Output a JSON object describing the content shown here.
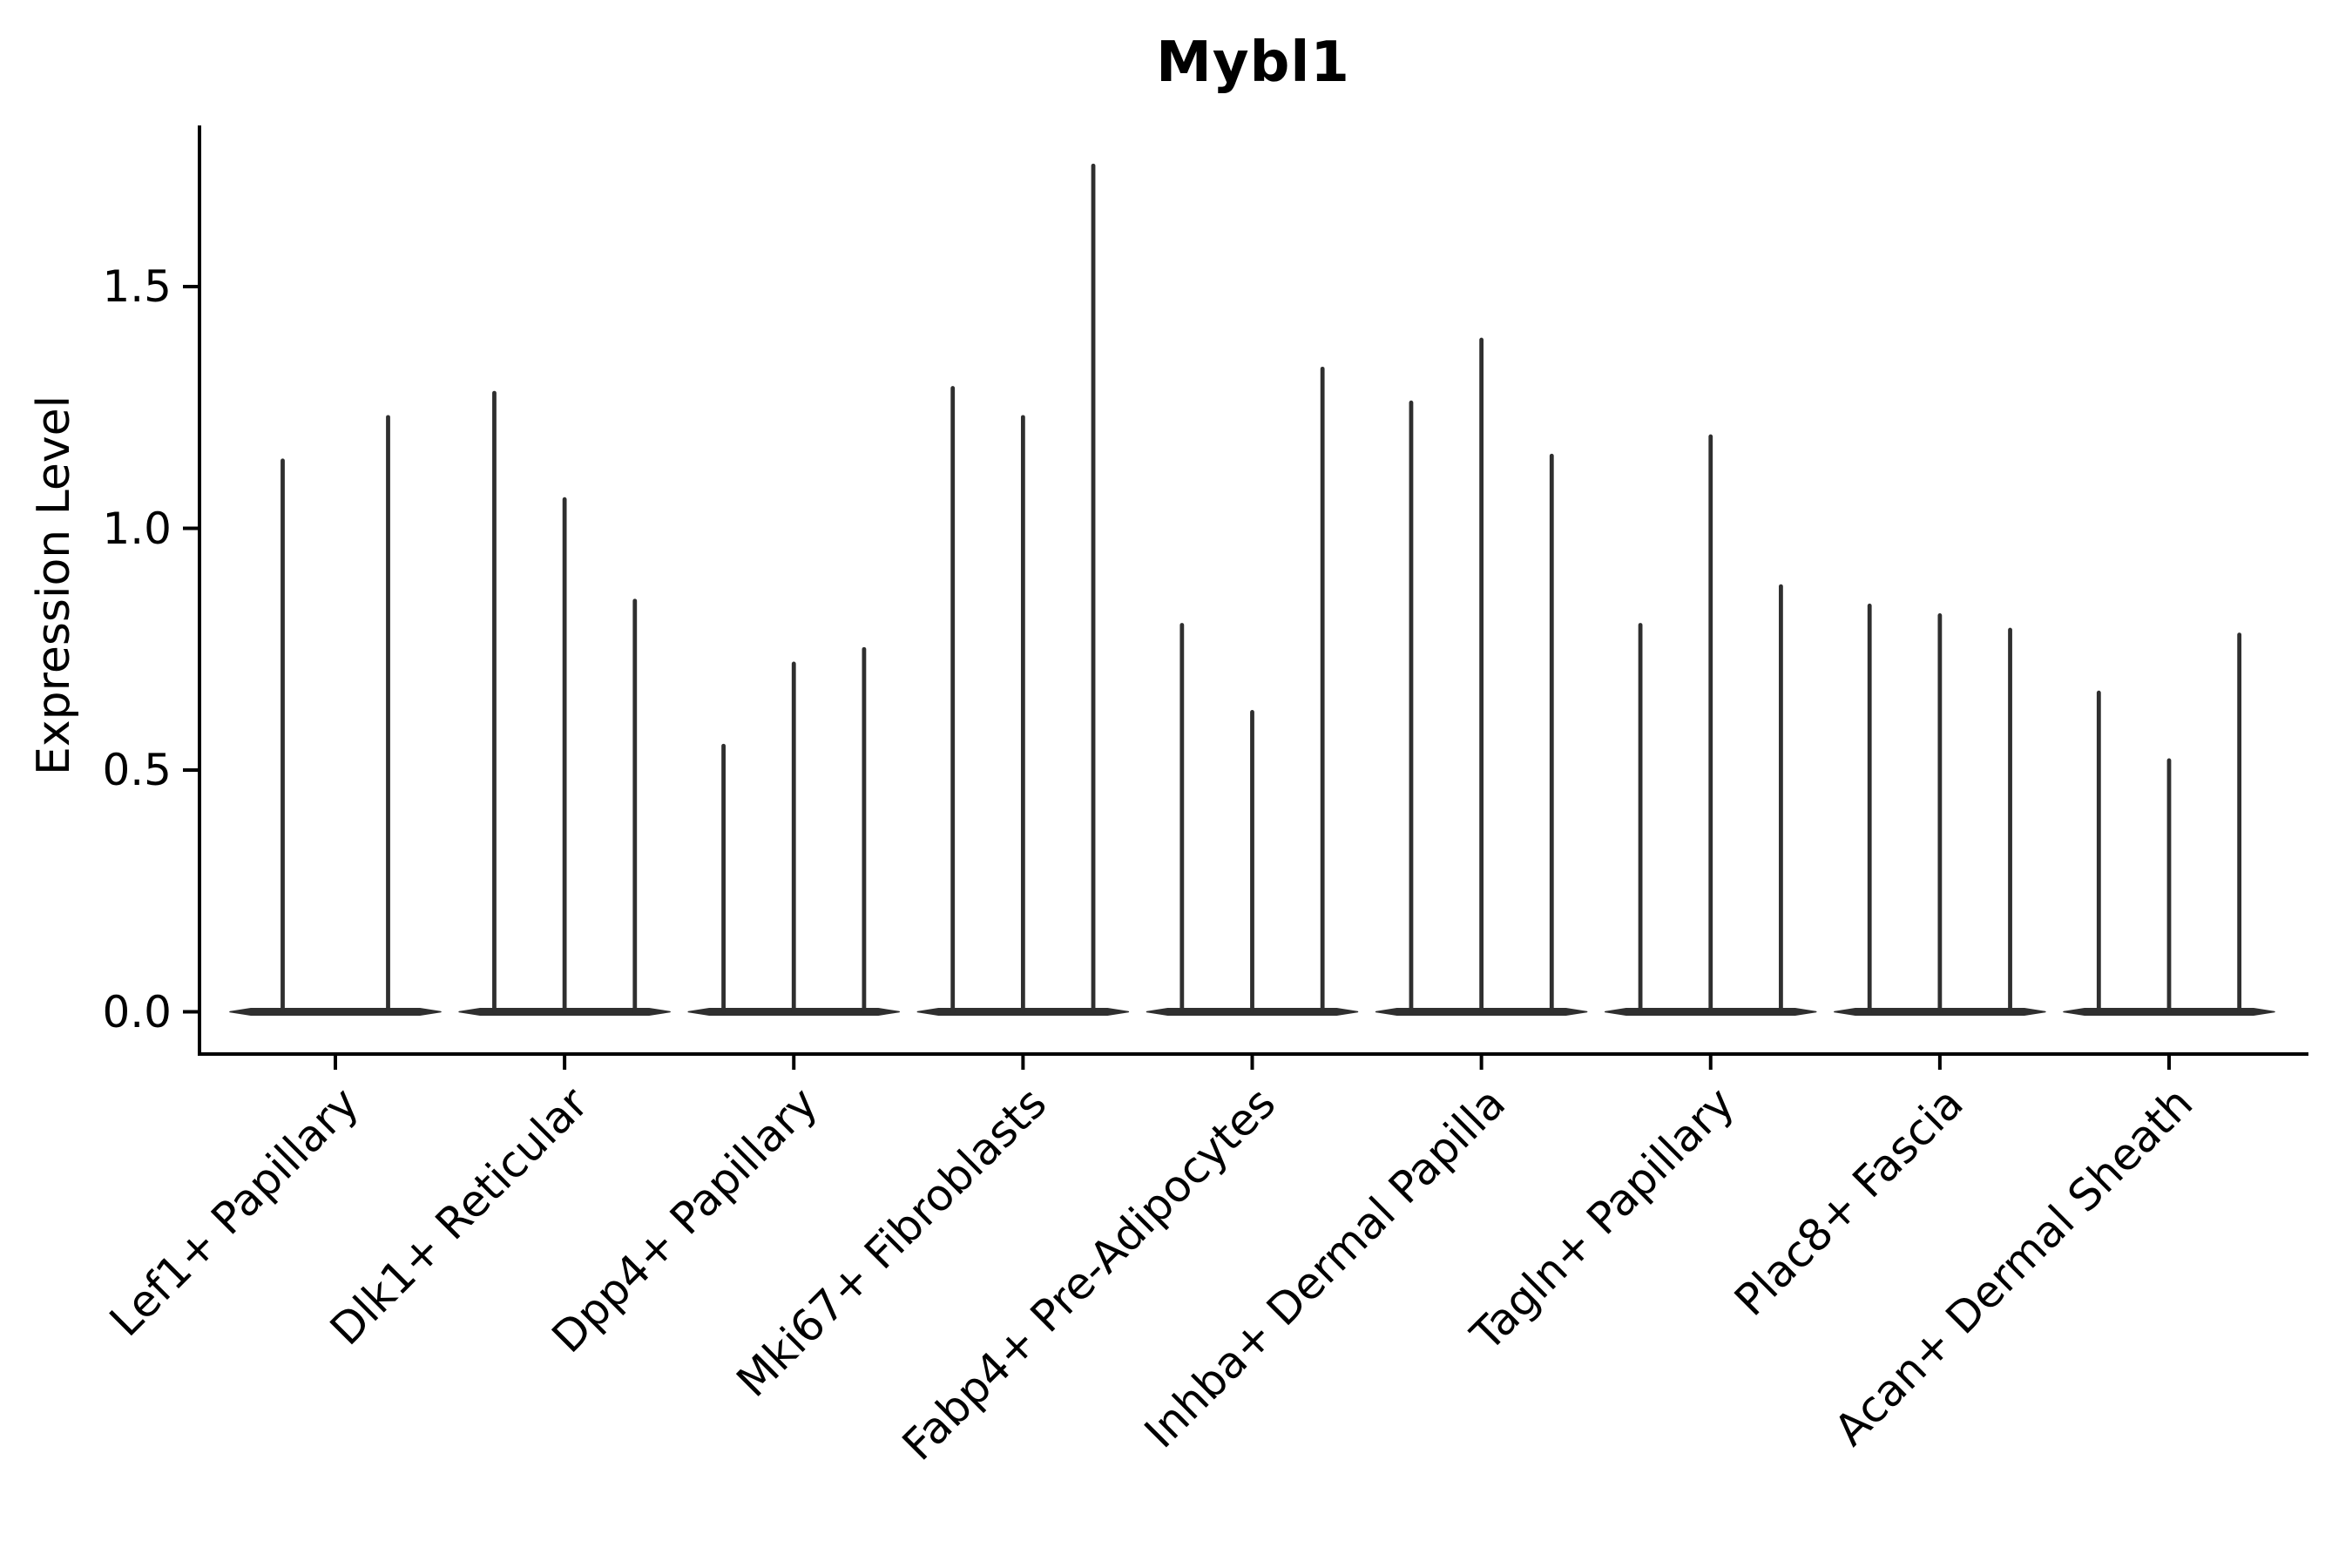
{
  "chart_data": {
    "type": "violin",
    "title": "Mybl1",
    "ylabel": "Expression Level",
    "xlabel": "",
    "ytick_labels": [
      "0.0",
      "0.5",
      "1.0",
      "1.5"
    ],
    "ytick_values": [
      0.0,
      0.5,
      1.0,
      1.5
    ],
    "ylim": [
      -0.09,
      1.84
    ],
    "grid": false,
    "legend": "none",
    "categories": [
      "Lef1+ Papillary",
      "Dlk1+ Reticular",
      "Dpp4+ Papillary",
      "Mki67+ Fibroblasts",
      "Fabp4+ Pre-Adipocytes",
      "Inhba+ Dermal Papilla",
      "Tagln+ Papillary",
      "Plac8+ Fascia",
      "Acan+ Dermal Sheath"
    ],
    "groups": [
      {
        "category": "Lef1+ Papillary",
        "violin_peaks": [
          1.14,
          1.23
        ]
      },
      {
        "category": "Dlk1+ Reticular",
        "violin_peaks": [
          1.28,
          1.06,
          0.85
        ]
      },
      {
        "category": "Dpp4+ Papillary",
        "violin_peaks": [
          0.55,
          0.72,
          0.75
        ]
      },
      {
        "category": "Mki67+ Fibroblasts",
        "violin_peaks": [
          1.29,
          1.23,
          1.75
        ]
      },
      {
        "category": "Fabp4+ Pre-Adipocytes",
        "violin_peaks": [
          0.8,
          0.62,
          1.33
        ]
      },
      {
        "category": "Inhba+ Dermal Papilla",
        "violin_peaks": [
          1.26,
          1.39,
          1.15
        ]
      },
      {
        "category": "Tagln+ Papillary",
        "violin_peaks": [
          0.8,
          1.19,
          0.88
        ]
      },
      {
        "category": "Plac8+ Fascia",
        "violin_peaks": [
          0.84,
          0.82,
          0.79
        ]
      },
      {
        "category": "Acan+ Dermal Sheath",
        "violin_peaks": [
          0.66,
          0.52,
          0.78
        ]
      }
    ],
    "violin_baseline_value": 0.0,
    "colors": {
      "violin": "#2f2f2f",
      "axis": "#000000",
      "text": "#000000",
      "background": "#ffffff"
    }
  }
}
